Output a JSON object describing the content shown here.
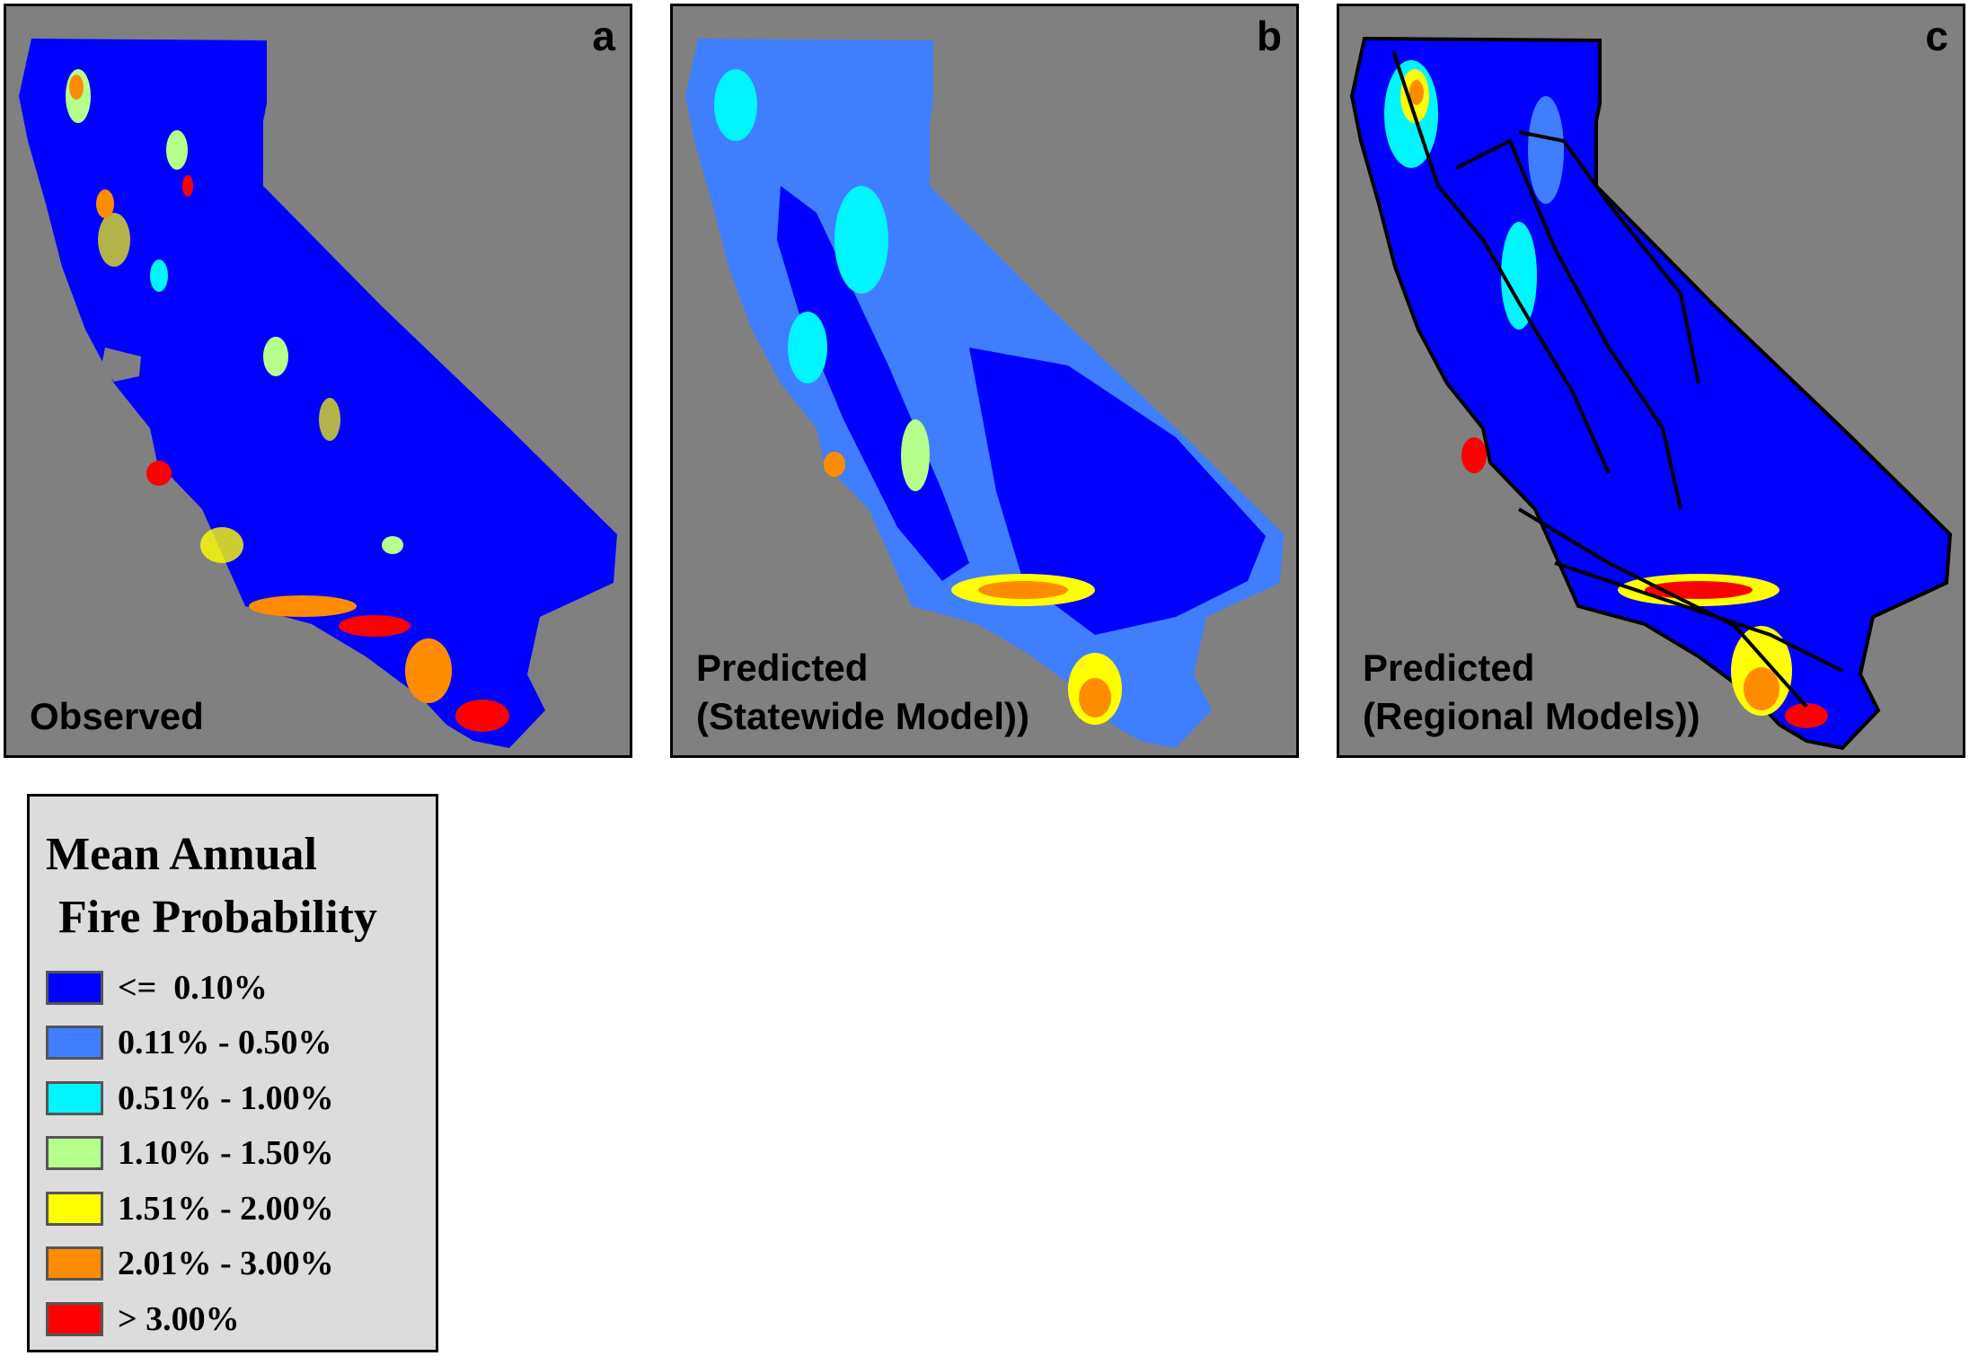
{
  "panels": [
    {
      "letter": "a",
      "caption_line1": "Observed",
      "caption_line2": ""
    },
    {
      "letter": "b",
      "caption_line1": "Predicted",
      "caption_line2": "(Statewide Model))"
    },
    {
      "letter": "c",
      "caption_line1": "Predicted",
      "caption_line2": "(Regional Models))"
    }
  ],
  "legend": {
    "title_line1": "Mean Annual",
    "title_line2": "Fire Probability",
    "items": [
      {
        "label": "<=  0.10%",
        "color": "#0000ff"
      },
      {
        "label": "0.11% - 0.50%",
        "color": "#3f7fff"
      },
      {
        "label": "0.51% - 1.00%",
        "color": "#00f5ff"
      },
      {
        "label": "1.10% - 1.50%",
        "color": "#b6ff8c"
      },
      {
        "label": "1.51% - 2.00%",
        "color": "#ffff00"
      },
      {
        "label": "2.01% - 3.00%",
        "color": "#ff8c00"
      },
      {
        "label": "> 3.00%",
        "color": "#ff0000"
      }
    ]
  },
  "colors": {
    "background": "#808080",
    "land": "#0000ff",
    "boundary": "#000000"
  }
}
